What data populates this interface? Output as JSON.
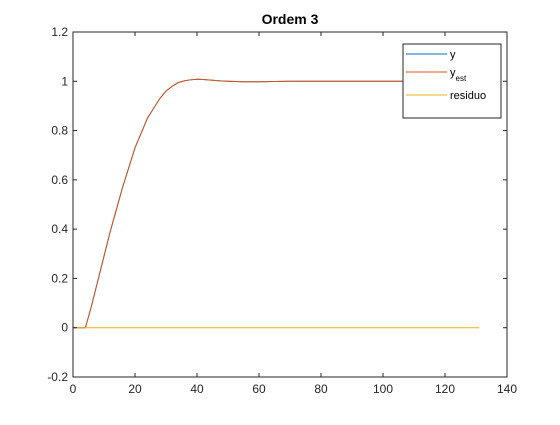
{
  "chart_data": {
    "type": "line",
    "title": "Ordem 3",
    "xlabel": "",
    "ylabel": "",
    "xlim": [
      0,
      140
    ],
    "ylim": [
      -0.2,
      1.2
    ],
    "xticks": [
      0,
      20,
      40,
      60,
      80,
      100,
      120,
      140
    ],
    "xtick_labels": [
      "0",
      "20",
      "40",
      "60",
      "80",
      "100",
      "120",
      "140"
    ],
    "yticks": [
      -0.2,
      0,
      0.2,
      0.4,
      0.6,
      0.8,
      1,
      1.2
    ],
    "ytick_labels": [
      "-0.2",
      "0",
      "0.2",
      "0.4",
      "0.6",
      "0.8",
      "1",
      "1.2"
    ],
    "grid": false,
    "legend_position": "top-right",
    "series": [
      {
        "name": "y",
        "name_sub": "",
        "color": "#0072BD",
        "x": [
          0,
          2,
          4,
          6,
          8,
          10,
          12,
          14,
          16,
          18,
          20,
          22,
          24,
          26,
          28,
          30,
          32,
          34,
          36,
          38,
          40,
          42,
          44,
          46,
          48,
          50,
          55,
          60,
          70,
          80,
          90,
          100,
          110,
          120,
          131
        ],
        "y": [
          0,
          0,
          0,
          0.09,
          0.19,
          0.29,
          0.39,
          0.48,
          0.57,
          0.65,
          0.73,
          0.79,
          0.85,
          0.89,
          0.93,
          0.96,
          0.98,
          0.995,
          1.002,
          1.006,
          1.008,
          1.007,
          1.005,
          1.003,
          1.001,
          1.0,
          0.998,
          0.998,
          1.0,
          1.0,
          1.0,
          1.0,
          1.0,
          1.0,
          1.0
        ]
      },
      {
        "name": "y",
        "name_sub": "est",
        "color": "#D95319",
        "x": [
          0,
          2,
          4,
          6,
          8,
          10,
          12,
          14,
          16,
          18,
          20,
          22,
          24,
          26,
          28,
          30,
          32,
          34,
          36,
          38,
          40,
          42,
          44,
          46,
          48,
          50,
          55,
          60,
          70,
          80,
          90,
          100,
          110,
          120,
          131
        ],
        "y": [
          0,
          0,
          0,
          0.09,
          0.19,
          0.29,
          0.39,
          0.48,
          0.57,
          0.65,
          0.73,
          0.79,
          0.85,
          0.89,
          0.93,
          0.96,
          0.98,
          0.995,
          1.002,
          1.006,
          1.008,
          1.007,
          1.005,
          1.003,
          1.001,
          1.0,
          0.998,
          0.998,
          1.0,
          1.0,
          1.0,
          1.0,
          1.0,
          1.0,
          1.0
        ]
      },
      {
        "name": "residuo",
        "name_sub": "",
        "color": "#EDB120",
        "x": [
          0,
          131
        ],
        "y": [
          0,
          0
        ]
      }
    ]
  }
}
